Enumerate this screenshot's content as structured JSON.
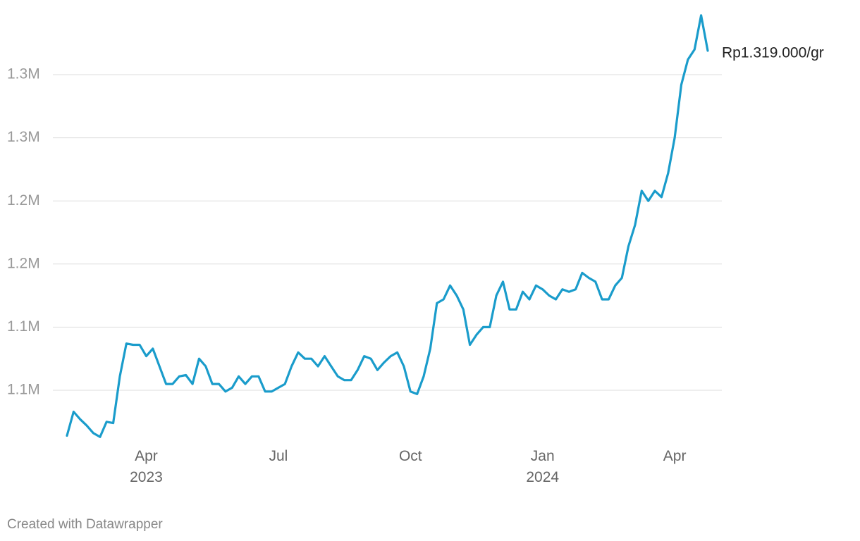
{
  "chart_data": {
    "type": "line",
    "categories": [
      null,
      null,
      null,
      null,
      null,
      null,
      null,
      null,
      null,
      null,
      null,
      null,
      "Apr 2023",
      null,
      null,
      null,
      null,
      null,
      null,
      null,
      null,
      null,
      null,
      null,
      null,
      null,
      null,
      null,
      null,
      null,
      null,
      null,
      "Jul",
      null,
      null,
      null,
      null,
      null,
      null,
      null,
      null,
      null,
      null,
      null,
      null,
      null,
      null,
      null,
      null,
      null,
      null,
      null,
      "Oct",
      null,
      null,
      null,
      null,
      null,
      null,
      null,
      null,
      null,
      null,
      null,
      null,
      null,
      null,
      null,
      null,
      null,
      null,
      null,
      "Jan 2024",
      null,
      null,
      null,
      null,
      null,
      null,
      null,
      null,
      null,
      null,
      null,
      null,
      null,
      null,
      null,
      null,
      null,
      null,
      null,
      "Apr",
      null,
      null,
      null,
      null,
      null
    ],
    "values": [
      1014000,
      1033000,
      1027000,
      1022000,
      1016000,
      1013000,
      1025000,
      1024000,
      1061000,
      1087000,
      1086000,
      1086000,
      1077000,
      1083000,
      1069000,
      1055000,
      1055000,
      1061000,
      1062000,
      1055000,
      1075000,
      1069000,
      1055000,
      1055000,
      1049000,
      1052000,
      1061000,
      1055000,
      1061000,
      1061000,
      1049000,
      1049000,
      1052000,
      1055000,
      1069000,
      1080000,
      1075000,
      1075000,
      1069000,
      1077000,
      1069000,
      1061000,
      1058000,
      1058000,
      1066000,
      1077000,
      1075000,
      1066000,
      1072000,
      1077000,
      1080000,
      1069000,
      1049000,
      1047000,
      1061000,
      1083000,
      1119000,
      1122000,
      1133000,
      1125000,
      1114000,
      1086000,
      1094000,
      1100000,
      1100000,
      1125000,
      1136000,
      1114000,
      1114000,
      1128000,
      1122000,
      1133000,
      1130000,
      1125000,
      1122000,
      1130000,
      1128000,
      1130000,
      1143000,
      1139000,
      1136000,
      1122000,
      1122000,
      1133000,
      1139000,
      1164000,
      1181000,
      1208000,
      1200000,
      1208000,
      1203000,
      1222000,
      1250000,
      1292000,
      1312000,
      1320000,
      1347000,
      1319000
    ],
    "value_labels": [
      null,
      null,
      null,
      null,
      null,
      null,
      null,
      null,
      null,
      null,
      null,
      null,
      null,
      null,
      null,
      null,
      null,
      null,
      null,
      null,
      null,
      null,
      null,
      null,
      null,
      null,
      null,
      null,
      null,
      null,
      null,
      null,
      null,
      null,
      null,
      null,
      null,
      null,
      null,
      null,
      null,
      null,
      null,
      null,
      null,
      null,
      null,
      null,
      null,
      null,
      null,
      null,
      null,
      null,
      null,
      null,
      null,
      null,
      null,
      null,
      null,
      null,
      null,
      null,
      null,
      null,
      null,
      null,
      null,
      null,
      null,
      null,
      null,
      null,
      null,
      null,
      null,
      null,
      null,
      null,
      null,
      null,
      null,
      null,
      null,
      null,
      null,
      null,
      null,
      null,
      null,
      null,
      null,
      null,
      null,
      null,
      null,
      "Rp1.319.000/gr"
    ],
    "color": "#1a9ccb",
    "ylim": [
      1010000,
      1350000
    ],
    "yticks": [
      {
        "value": 1050000,
        "label": "1.1M"
      },
      {
        "value": 1100000,
        "label": "1.1M"
      },
      {
        "value": 1150000,
        "label": "1.2M"
      },
      {
        "value": 1200000,
        "label": "1.2M"
      },
      {
        "value": 1250000,
        "label": "1.3M"
      },
      {
        "value": 1300000,
        "label": "1.3M"
      }
    ],
    "grid": true,
    "credit": "Created with Datawrapper"
  }
}
